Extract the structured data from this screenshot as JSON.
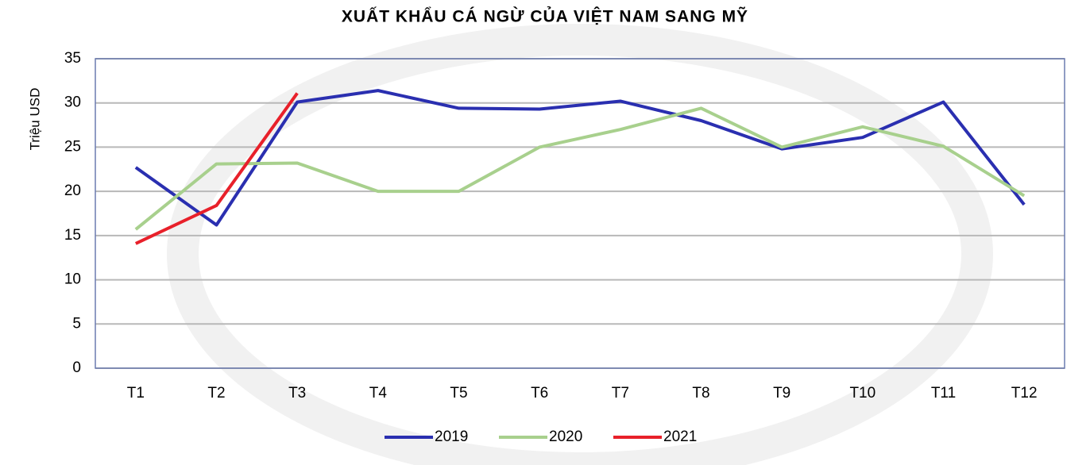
{
  "chart_data": {
    "type": "line",
    "title": "XUẤT KHẨU CÁ NGỪ CỦA VIỆT NAM SANG MỸ",
    "ylabel": "Triệu USD",
    "categories": [
      "T1",
      "T2",
      "T3",
      "T4",
      "T5",
      "T6",
      "T7",
      "T8",
      "T9",
      "T10",
      "T11",
      "T12"
    ],
    "series": [
      {
        "name": "2019",
        "color": "#2a2fb0",
        "values": [
          22.7,
          16.2,
          30.1,
          31.4,
          29.4,
          29.3,
          30.2,
          28.0,
          24.8,
          26.1,
          30.1,
          18.5
        ]
      },
      {
        "name": "2020",
        "color": "#a8d08d",
        "values": [
          15.7,
          23.1,
          23.2,
          20.0,
          20.0,
          25.0,
          27.0,
          29.4,
          25.0,
          27.3,
          25.1,
          19.5
        ]
      },
      {
        "name": "2021",
        "color": "#e8202a",
        "values": [
          14.1,
          18.4,
          31.1,
          null,
          null,
          null,
          null,
          null,
          null,
          null,
          null,
          null
        ]
      }
    ],
    "ylim": [
      0,
      35
    ],
    "yticks": [
      0,
      5,
      10,
      15,
      20,
      25,
      30,
      35
    ],
    "grid": true,
    "legend": "bottom"
  }
}
